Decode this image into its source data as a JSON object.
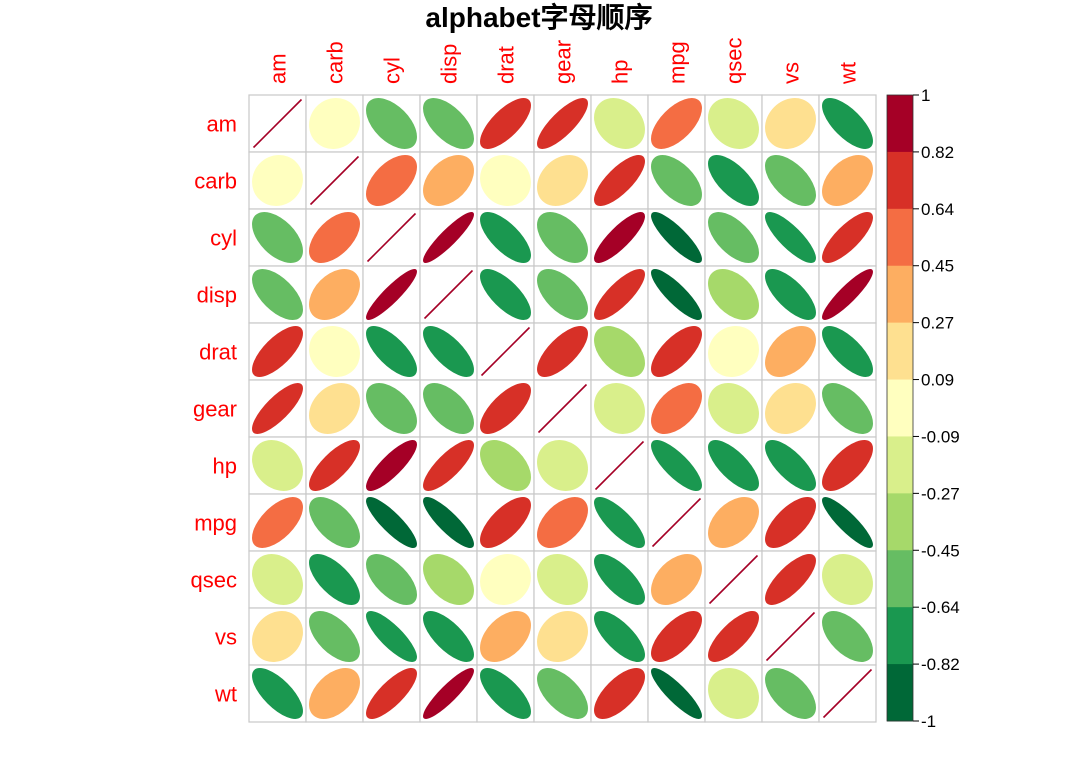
{
  "chart_data": {
    "type": "heatmap",
    "title": "alphabet字母顺序",
    "variables": [
      "am",
      "carb",
      "cyl",
      "disp",
      "drat",
      "gear",
      "hp",
      "mpg",
      "qsec",
      "vs",
      "wt"
    ],
    "matrix": [
      [
        1,
        0.06,
        -0.52,
        -0.59,
        0.71,
        0.79,
        -0.24,
        0.6,
        -0.23,
        0.17,
        -0.69
      ],
      [
        0.06,
        1,
        0.53,
        0.39,
        -0.09,
        0.27,
        0.75,
        -0.55,
        -0.66,
        -0.57,
        0.43
      ],
      [
        -0.52,
        0.53,
        1,
        0.9,
        -0.7,
        -0.49,
        0.83,
        -0.85,
        -0.59,
        -0.81,
        0.78
      ],
      [
        -0.59,
        0.39,
        0.9,
        1,
        -0.71,
        -0.56,
        0.79,
        -0.85,
        -0.43,
        -0.71,
        0.89
      ],
      [
        0.71,
        -0.09,
        -0.7,
        -0.71,
        1,
        0.7,
        -0.45,
        0.68,
        0.09,
        0.44,
        -0.71
      ],
      [
        0.79,
        0.27,
        -0.49,
        -0.56,
        0.7,
        1,
        -0.13,
        0.48,
        -0.21,
        0.21,
        -0.58
      ],
      [
        -0.24,
        0.75,
        0.83,
        0.79,
        -0.45,
        -0.13,
        1,
        -0.78,
        -0.71,
        -0.72,
        0.66
      ],
      [
        0.6,
        -0.55,
        -0.85,
        -0.85,
        0.68,
        0.48,
        -0.78,
        1,
        0.42,
        0.66,
        -0.87
      ],
      [
        -0.23,
        -0.66,
        -0.59,
        -0.43,
        0.09,
        -0.21,
        -0.71,
        0.42,
        1,
        0.74,
        -0.17
      ],
      [
        0.17,
        -0.57,
        -0.81,
        -0.71,
        0.44,
        0.21,
        -0.72,
        0.66,
        0.74,
        1,
        -0.55
      ],
      [
        -0.69,
        0.43,
        0.78,
        0.89,
        -0.71,
        -0.58,
        0.66,
        -0.87,
        -0.17,
        -0.55,
        1
      ]
    ],
    "colorbar": {
      "ticks": [
        "1",
        "0.82",
        "0.64",
        "0.45",
        "0.27",
        "0.09",
        "-0.09",
        "-0.27",
        "-0.45",
        "-0.64",
        "-0.82",
        "-1"
      ],
      "colors": [
        "#A50026",
        "#D73027",
        "#F46D43",
        "#FDAE61",
        "#FEE090",
        "#FFFFBF",
        "#D9EF8B",
        "#A6D96A",
        "#66BD63",
        "#1A9850",
        "#006837"
      ]
    },
    "label_color": "#FF0000",
    "grid": true
  }
}
